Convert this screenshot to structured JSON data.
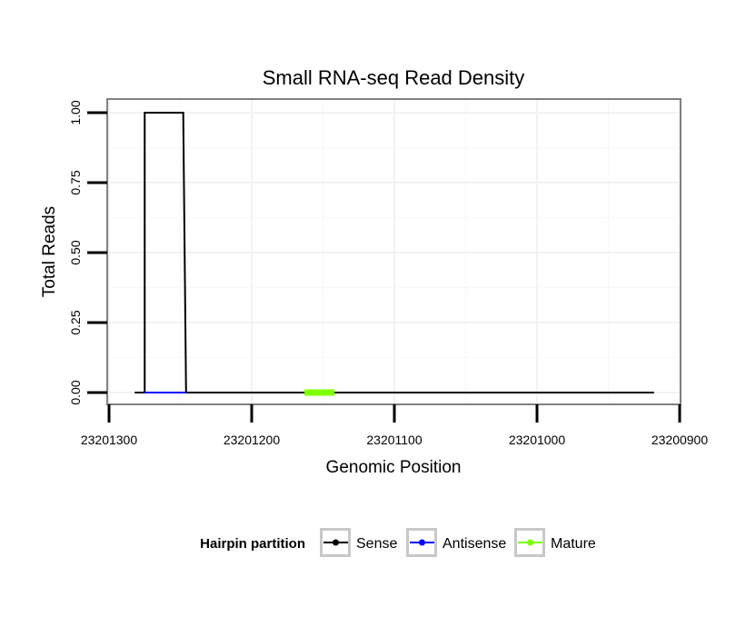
{
  "chart_data": {
    "type": "line",
    "title": "Small RNA-seq Read Density",
    "xlabel": "Genomic Position",
    "ylabel": "Total Reads",
    "xlim": [
      23201300,
      23200900
    ],
    "ylim": [
      0,
      1.0
    ],
    "x_ticks": [
      23201300,
      23201200,
      23201100,
      23201000,
      23200900
    ],
    "x_tick_labels": [
      "23201300",
      "23201200",
      "23201100",
      "23201000",
      "23200900"
    ],
    "y_ticks": [
      0,
      0.25,
      0.5,
      0.75,
      1.0
    ],
    "y_tick_labels": [
      "0.00",
      "0.25",
      "0.50",
      "0.75",
      "1.00"
    ],
    "grid": true,
    "legend_position": "bottom",
    "legend_title": "Hairpin partition",
    "series": [
      {
        "name": "Sense",
        "color": "#000000",
        "x": [
          23201282,
          23201275,
          23201275,
          23201248,
          23201246,
          23200918
        ],
        "y": [
          0,
          0,
          1,
          1,
          0,
          0
        ]
      },
      {
        "name": "Antisense",
        "color": "#0000ff",
        "x": [
          23201275,
          23201246
        ],
        "y": [
          0,
          0
        ]
      },
      {
        "name": "Mature",
        "color": "#7fff00",
        "x": [
          23201163,
          23201142
        ],
        "y": [
          0,
          0
        ]
      }
    ]
  }
}
